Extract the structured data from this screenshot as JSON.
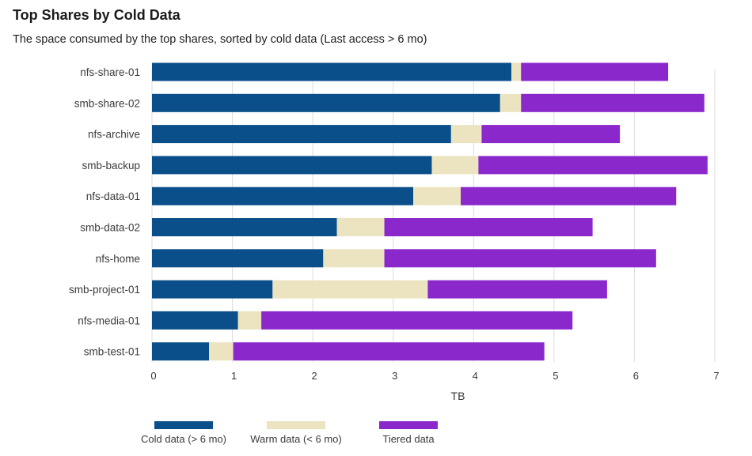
{
  "chart_data": {
    "type": "bar",
    "orientation": "horizontal",
    "stacked": true,
    "title": "Top Shares by Cold Data",
    "subtitle": "The space consumed by the top shares, sorted by cold data (Last access > 6 mo)",
    "xlabel": "TB",
    "ylabel": "",
    "xlim": [
      0,
      7
    ],
    "xticks": [
      "0",
      "1",
      "2",
      "3",
      "4",
      "5",
      "6",
      "7"
    ],
    "grid": "vertical",
    "legend_position": "bottom",
    "categories": [
      "nfs-share-01",
      "smb-share-02",
      "nfs-archive",
      "smb-backup",
      "nfs-data-01",
      "smb-data-02",
      "nfs-home",
      "smb-project-01",
      "nfs-media-01",
      "smb-test-01"
    ],
    "series": [
      {
        "name": "Cold data (> 6 mo)",
        "color": "#0a4f8a",
        "values": [
          4.47,
          4.33,
          3.72,
          3.48,
          3.25,
          2.3,
          2.13,
          1.5,
          1.07,
          0.71
        ]
      },
      {
        "name": "Warm data (< 6 mo)",
        "color": "#ece3c0",
        "values": [
          0.12,
          0.26,
          0.38,
          0.58,
          0.59,
          0.59,
          0.76,
          1.93,
          0.29,
          0.3
        ]
      },
      {
        "name": "Tiered data",
        "color": "#8a28cc",
        "values": [
          1.83,
          2.28,
          1.72,
          2.85,
          2.68,
          2.59,
          3.38,
          2.23,
          3.87,
          3.87
        ]
      }
    ]
  }
}
